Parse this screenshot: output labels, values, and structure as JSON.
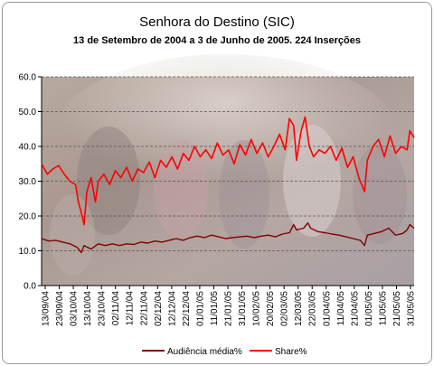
{
  "chart_data": {
    "type": "line",
    "title": "Senhora do Destino (SIC)",
    "subtitle": "13 de Setembro de 2004 a 3 de Junho de 2005.  224 Inserções",
    "x_tick_labels": [
      "13/09/04",
      "23/09/04",
      "03/10/04",
      "13/10/04",
      "23/10/04",
      "02/11/04",
      "12/11/04",
      "22/11/04",
      "02/12/04",
      "12/12/04",
      "22/12/04",
      "01/01/05",
      "11/01/05",
      "21/01/05",
      "31/01/05",
      "10/02/05",
      "20/02/05",
      "02/03/05",
      "12/03/05",
      "22/03/05",
      "01/04/05",
      "11/04/05",
      "21/04/05",
      "01/05/05",
      "11/05/05",
      "21/05/05",
      "31/05/05"
    ],
    "y_tick_labels": [
      "0.0",
      "10.0",
      "20.0",
      "30.0",
      "40.0",
      "50.0",
      "60.0"
    ],
    "ylim": [
      0,
      60
    ],
    "gridlines": "horizontal dashed",
    "legend_position": "bottom",
    "x_range_days": [
      0,
      263
    ],
    "series": [
      {
        "name": "Audiência média%",
        "color": "#800000",
        "points": [
          [
            0,
            13.5
          ],
          [
            5,
            12.8
          ],
          [
            10,
            13.0
          ],
          [
            15,
            12.5
          ],
          [
            20,
            12.0
          ],
          [
            25,
            11.0
          ],
          [
            28,
            9.5
          ],
          [
            30,
            11.5
          ],
          [
            35,
            10.5
          ],
          [
            40,
            12.0
          ],
          [
            45,
            11.5
          ],
          [
            50,
            12.0
          ],
          [
            55,
            11.5
          ],
          [
            60,
            12.0
          ],
          [
            65,
            11.8
          ],
          [
            70,
            12.5
          ],
          [
            75,
            12.2
          ],
          [
            80,
            12.8
          ],
          [
            85,
            12.5
          ],
          [
            90,
            13.0
          ],
          [
            95,
            13.5
          ],
          [
            100,
            13.0
          ],
          [
            105,
            13.8
          ],
          [
            110,
            14.2
          ],
          [
            115,
            13.8
          ],
          [
            120,
            14.5
          ],
          [
            125,
            14.0
          ],
          [
            130,
            13.5
          ],
          [
            135,
            13.8
          ],
          [
            140,
            14.0
          ],
          [
            145,
            14.2
          ],
          [
            150,
            13.8
          ],
          [
            155,
            14.2
          ],
          [
            160,
            14.5
          ],
          [
            165,
            14.0
          ],
          [
            170,
            14.8
          ],
          [
            175,
            15.2
          ],
          [
            178,
            17.5
          ],
          [
            180,
            16.0
          ],
          [
            185,
            16.5
          ],
          [
            188,
            18.0
          ],
          [
            190,
            16.5
          ],
          [
            195,
            15.5
          ],
          [
            200,
            15.2
          ],
          [
            205,
            14.8
          ],
          [
            210,
            14.5
          ],
          [
            215,
            14.0
          ],
          [
            220,
            13.5
          ],
          [
            225,
            13.0
          ],
          [
            228,
            11.5
          ],
          [
            230,
            14.5
          ],
          [
            235,
            15.0
          ],
          [
            240,
            15.5
          ],
          [
            245,
            16.5
          ],
          [
            250,
            14.5
          ],
          [
            255,
            15.0
          ],
          [
            258,
            16.0
          ],
          [
            260,
            17.5
          ],
          [
            263,
            16.5
          ]
        ]
      },
      {
        "name": "Share%",
        "color": "#ff0000",
        "points": [
          [
            0,
            35.0
          ],
          [
            4,
            32.0
          ],
          [
            8,
            33.5
          ],
          [
            12,
            34.5
          ],
          [
            16,
            32.0
          ],
          [
            20,
            30.0
          ],
          [
            24,
            29.0
          ],
          [
            26,
            24.0
          ],
          [
            28,
            21.0
          ],
          [
            30,
            17.5
          ],
          [
            32,
            27.0
          ],
          [
            35,
            31.0
          ],
          [
            38,
            24.0
          ],
          [
            40,
            30.0
          ],
          [
            44,
            32.0
          ],
          [
            48,
            29.0
          ],
          [
            52,
            33.0
          ],
          [
            56,
            31.0
          ],
          [
            60,
            34.0
          ],
          [
            64,
            30.0
          ],
          [
            68,
            33.5
          ],
          [
            72,
            32.5
          ],
          [
            76,
            35.5
          ],
          [
            80,
            31.0
          ],
          [
            84,
            36.0
          ],
          [
            88,
            34.0
          ],
          [
            92,
            37.0
          ],
          [
            96,
            33.5
          ],
          [
            100,
            38.0
          ],
          [
            104,
            36.0
          ],
          [
            108,
            40.0
          ],
          [
            112,
            37.0
          ],
          [
            116,
            39.0
          ],
          [
            120,
            36.5
          ],
          [
            124,
            41.0
          ],
          [
            128,
            37.5
          ],
          [
            132,
            39.0
          ],
          [
            136,
            35.0
          ],
          [
            140,
            40.5
          ],
          [
            144,
            37.5
          ],
          [
            148,
            42.0
          ],
          [
            152,
            38.0
          ],
          [
            156,
            41.0
          ],
          [
            160,
            37.0
          ],
          [
            164,
            40.0
          ],
          [
            168,
            43.5
          ],
          [
            172,
            39.0
          ],
          [
            175,
            48.0
          ],
          [
            178,
            46.0
          ],
          [
            180,
            36.0
          ],
          [
            183,
            44.0
          ],
          [
            186,
            48.5
          ],
          [
            189,
            40.0
          ],
          [
            192,
            37.0
          ],
          [
            196,
            39.0
          ],
          [
            200,
            38.0
          ],
          [
            204,
            40.0
          ],
          [
            208,
            36.0
          ],
          [
            212,
            39.5
          ],
          [
            216,
            34.0
          ],
          [
            220,
            37.0
          ],
          [
            224,
            31.0
          ],
          [
            228,
            27.0
          ],
          [
            230,
            36.0
          ],
          [
            234,
            40.0
          ],
          [
            238,
            42.0
          ],
          [
            242,
            37.0
          ],
          [
            246,
            43.0
          ],
          [
            250,
            38.0
          ],
          [
            254,
            40.0
          ],
          [
            258,
            39.0
          ],
          [
            260,
            44.5
          ],
          [
            263,
            42.5
          ]
        ]
      }
    ]
  }
}
